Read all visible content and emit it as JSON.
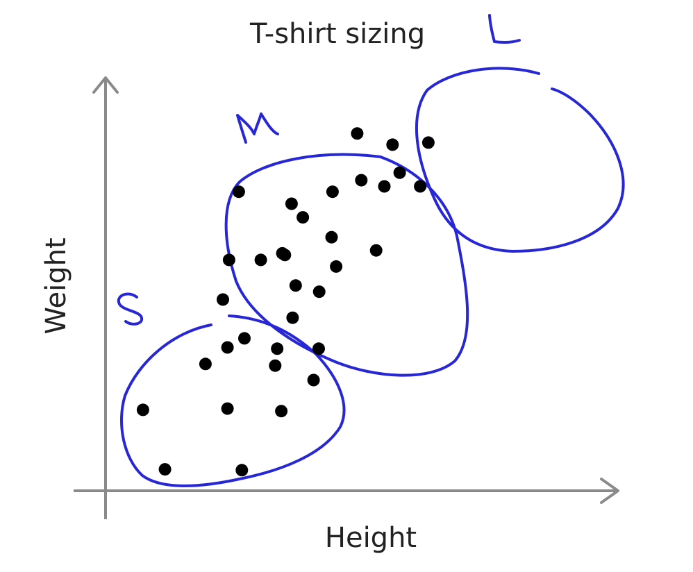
{
  "chart_data": {
    "type": "scatter",
    "title": "T-shirt sizing",
    "xlabel": "Height",
    "ylabel": "Weight",
    "xlim": [
      0,
      100
    ],
    "ylim": [
      0,
      100
    ],
    "grid": false,
    "ink_color": "#2727d6",
    "axis_color": "#8a8a8a",
    "point_color": "#000000",
    "points": [
      {
        "x": 7.3,
        "y": 19.6
      },
      {
        "x": 11.6,
        "y": 5.2
      },
      {
        "x": 19.5,
        "y": 30.7
      },
      {
        "x": 23.8,
        "y": 34.7
      },
      {
        "x": 23.8,
        "y": 19.9
      },
      {
        "x": 26.6,
        "y": 5.0
      },
      {
        "x": 33.1,
        "y": 30.3
      },
      {
        "x": 34.3,
        "y": 19.3
      },
      {
        "x": 40.6,
        "y": 26.8
      },
      {
        "x": 22.9,
        "y": 46.3
      },
      {
        "x": 27.1,
        "y": 36.9
      },
      {
        "x": 33.5,
        "y": 34.4
      },
      {
        "x": 41.6,
        "y": 34.4
      },
      {
        "x": 36.5,
        "y": 41.9
      },
      {
        "x": 37.1,
        "y": 49.7
      },
      {
        "x": 34.5,
        "y": 57.5
      },
      {
        "x": 41.7,
        "y": 48.2
      },
      {
        "x": 24.1,
        "y": 55.9
      },
      {
        "x": 30.3,
        "y": 55.9
      },
      {
        "x": 36.3,
        "y": 69.5
      },
      {
        "x": 26.0,
        "y": 72.4
      },
      {
        "x": 35.0,
        "y": 57.1
      },
      {
        "x": 44.1,
        "y": 61.4
      },
      {
        "x": 45.0,
        "y": 54.3
      },
      {
        "x": 38.5,
        "y": 66.2
      },
      {
        "x": 44.3,
        "y": 72.4
      },
      {
        "x": 49.1,
        "y": 86.5
      },
      {
        "x": 56.0,
        "y": 83.8
      },
      {
        "x": 63.0,
        "y": 84.3
      },
      {
        "x": 57.4,
        "y": 77.0
      },
      {
        "x": 49.9,
        "y": 75.2
      },
      {
        "x": 54.4,
        "y": 73.7
      },
      {
        "x": 61.4,
        "y": 73.7
      },
      {
        "x": 52.8,
        "y": 58.2
      }
    ],
    "annotations": [
      {
        "text": "S",
        "x": 1.0,
        "y": 44.0
      },
      {
        "text": "M",
        "x": 16.5,
        "y": 85.6
      },
      {
        "text": "L",
        "x": 50.0,
        "y": 102.5
      }
    ]
  }
}
